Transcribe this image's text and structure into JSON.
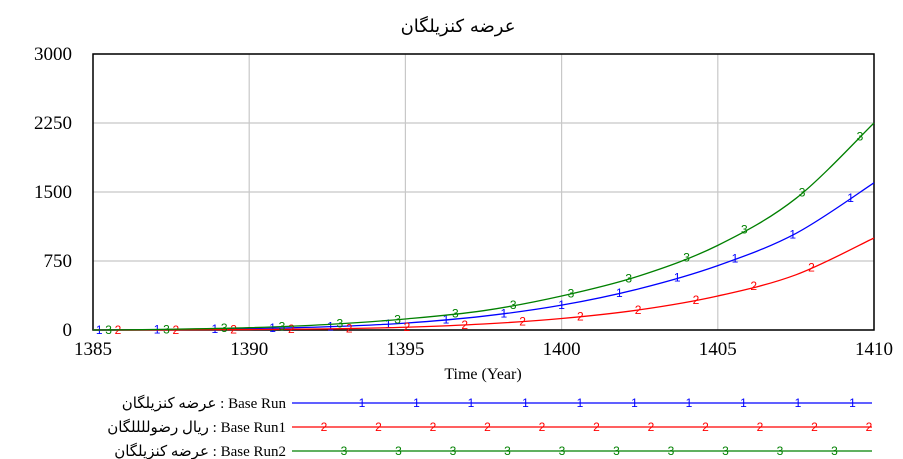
{
  "chart_data": {
    "type": "line",
    "title": "عرضه کنزیلگان",
    "xlabel": "Time (Year)",
    "ylabel": "",
    "xlim": [
      1385,
      1410
    ],
    "ylim": [
      0,
      3000
    ],
    "x_ticks": [
      "1385",
      "1390",
      "1395",
      "1400",
      "1405",
      "1410"
    ],
    "y_ticks": [
      "0",
      "750",
      "1500",
      "2250",
      "3000"
    ],
    "grid": true,
    "legend_position": "bottom",
    "x": [
      1385,
      1387.5,
      1390,
      1392.5,
      1395,
      1397.5,
      1400,
      1402.5,
      1405,
      1407.5,
      1410
    ],
    "series": [
      {
        "name": "عرضه کنزیلگان : Base Run",
        "marker": "1",
        "color": "#0000ff",
        "values": [
          0,
          5,
          15,
          35,
          75,
          150,
          270,
          450,
          700,
          1050,
          1600
        ]
      },
      {
        "name": "ریال رضوللللگان : Base Run1",
        "marker": "2",
        "color": "#ff0000",
        "values": [
          0,
          2,
          5,
          12,
          30,
          65,
          125,
          220,
          370,
          600,
          1000
        ]
      },
      {
        "name": "عرضه کنزیلگان : Base Run2",
        "marker": "3",
        "color": "#008000",
        "values": [
          0,
          8,
          25,
          60,
          120,
          210,
          370,
          590,
          920,
          1430,
          2250
        ]
      }
    ]
  }
}
